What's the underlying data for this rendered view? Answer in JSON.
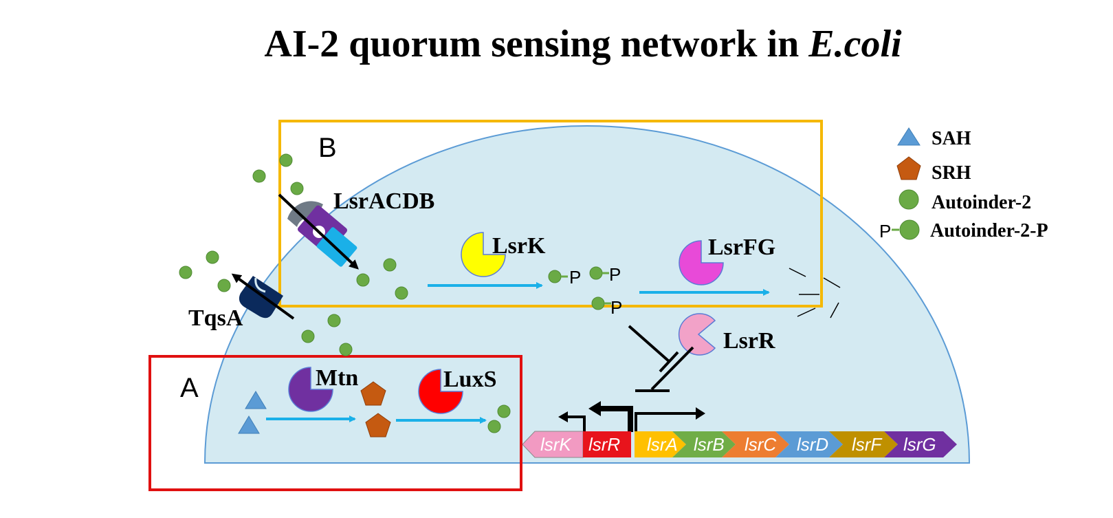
{
  "title": {
    "main": "AI-2 quorum sensing network in ",
    "organism": "E.coli"
  },
  "boxes": {
    "a": "A",
    "b": "B"
  },
  "proteins": {
    "lsracdb": "LsrACDB",
    "tqsa": "TqsA",
    "lsrk": "LsrK",
    "lsrfg": "LsrFG",
    "lsrr": "LsrR",
    "mtn": "Mtn",
    "luxs": "LuxS"
  },
  "phospho_label": "P",
  "genes": [
    "lsrK",
    "lsrR",
    "lsrA",
    "lsrB",
    "lsrC",
    "lsrD",
    "lsrF",
    "lsrG"
  ],
  "legend": {
    "sah": "SAH",
    "srh": "SRH",
    "ai2": "Autoinder-2",
    "ai2p_p": "P",
    "ai2p": "Autoinder-2-P"
  },
  "colors": {
    "cell": "#d4eaf2",
    "cell_edge": "#5b9bd5",
    "box_a": "#e01010",
    "box_b": "#f5b800",
    "arrow": "#1ab0e8",
    "ai2": "#6aaa45",
    "sah": "#5b9bd5",
    "srh": "#c55a11",
    "lsrk": "#ffff00",
    "lsrfg": "#e84ad8",
    "lsrr": "#f2a2c8",
    "mtn": "#7030a0",
    "luxs": "#ff0000",
    "gene_lsrK": "#f29ac2",
    "gene_lsrR": "#e8141c",
    "gene_lsrA": "#ffc000",
    "gene_lsrB": "#70ad47",
    "gene_lsrC": "#ed7d31",
    "gene_lsrD": "#5b9bd5",
    "gene_lsrF": "#bf9000",
    "gene_lsrG": "#7030a0"
  }
}
